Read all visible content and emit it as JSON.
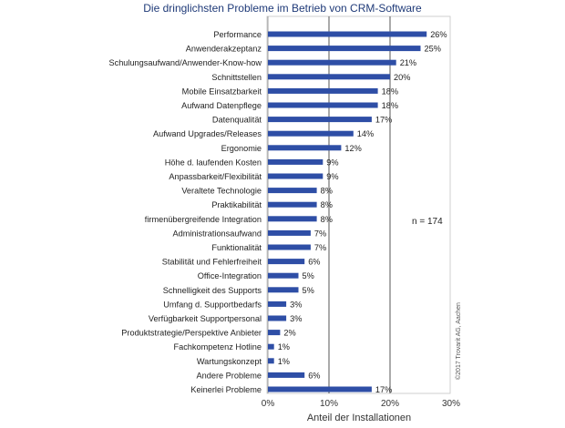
{
  "chart_data": {
    "type": "bar",
    "orientation": "horizontal",
    "title": "Die dringlichsten Probleme im Betrieb von CRM-Software",
    "xlabel": "Anteil der Installationen",
    "ylabel": "",
    "xlim": [
      0,
      30
    ],
    "xticks": [
      "0%",
      "10%",
      "20%",
      "30%"
    ],
    "categories": [
      "Performance",
      "Anwenderakzeptanz",
      "Schulungsaufwand/Anwender-Know-how",
      "Schnittstellen",
      "Mobile Einsatzbarkeit",
      "Aufwand Datenpflege",
      "Datenqualität",
      "Aufwand Upgrades/Releases",
      "Ergonomie",
      "Höhe d. laufenden Kosten",
      "Anpassbarkeit/Flexibilität",
      "Veraltete Technologie",
      "Praktikabilität",
      "firmenübergreifende Integration",
      "Administrationsaufwand",
      "Funktionalität",
      "Stabilität und Fehlerfreiheit",
      "Office-Integration",
      "Schnelligkeit des Supports",
      "Umfang d. Supportbedarfs",
      "Verfügbarkeit Supportpersonal",
      "Produktstrategie/Perspektive Anbieter",
      "Fachkompetenz Hotline",
      "Wartungskonzept",
      "Andere Probleme",
      "Keinerlei Probleme"
    ],
    "values": [
      26,
      25,
      21,
      20,
      18,
      18,
      17,
      14,
      12,
      9,
      9,
      8,
      8,
      8,
      7,
      7,
      6,
      5,
      5,
      3,
      3,
      2,
      1,
      1,
      6,
      17
    ],
    "value_labels": [
      "26%",
      "25%",
      "21%",
      "20%",
      "18%",
      "18%",
      "17%",
      "14%",
      "12%",
      "9%",
      "9%",
      "8%",
      "8%",
      "8%",
      "7%",
      "7%",
      "6%",
      "5%",
      "5%",
      "3%",
      "3%",
      "2%",
      "1%",
      "1%",
      "6%",
      "17%"
    ],
    "annotation": "n = 174",
    "copyright": "©2017 Trovarit AG, Aachen",
    "grid": "vertical lines at 10% and 20%",
    "bar_color": "#2e4ea6"
  }
}
